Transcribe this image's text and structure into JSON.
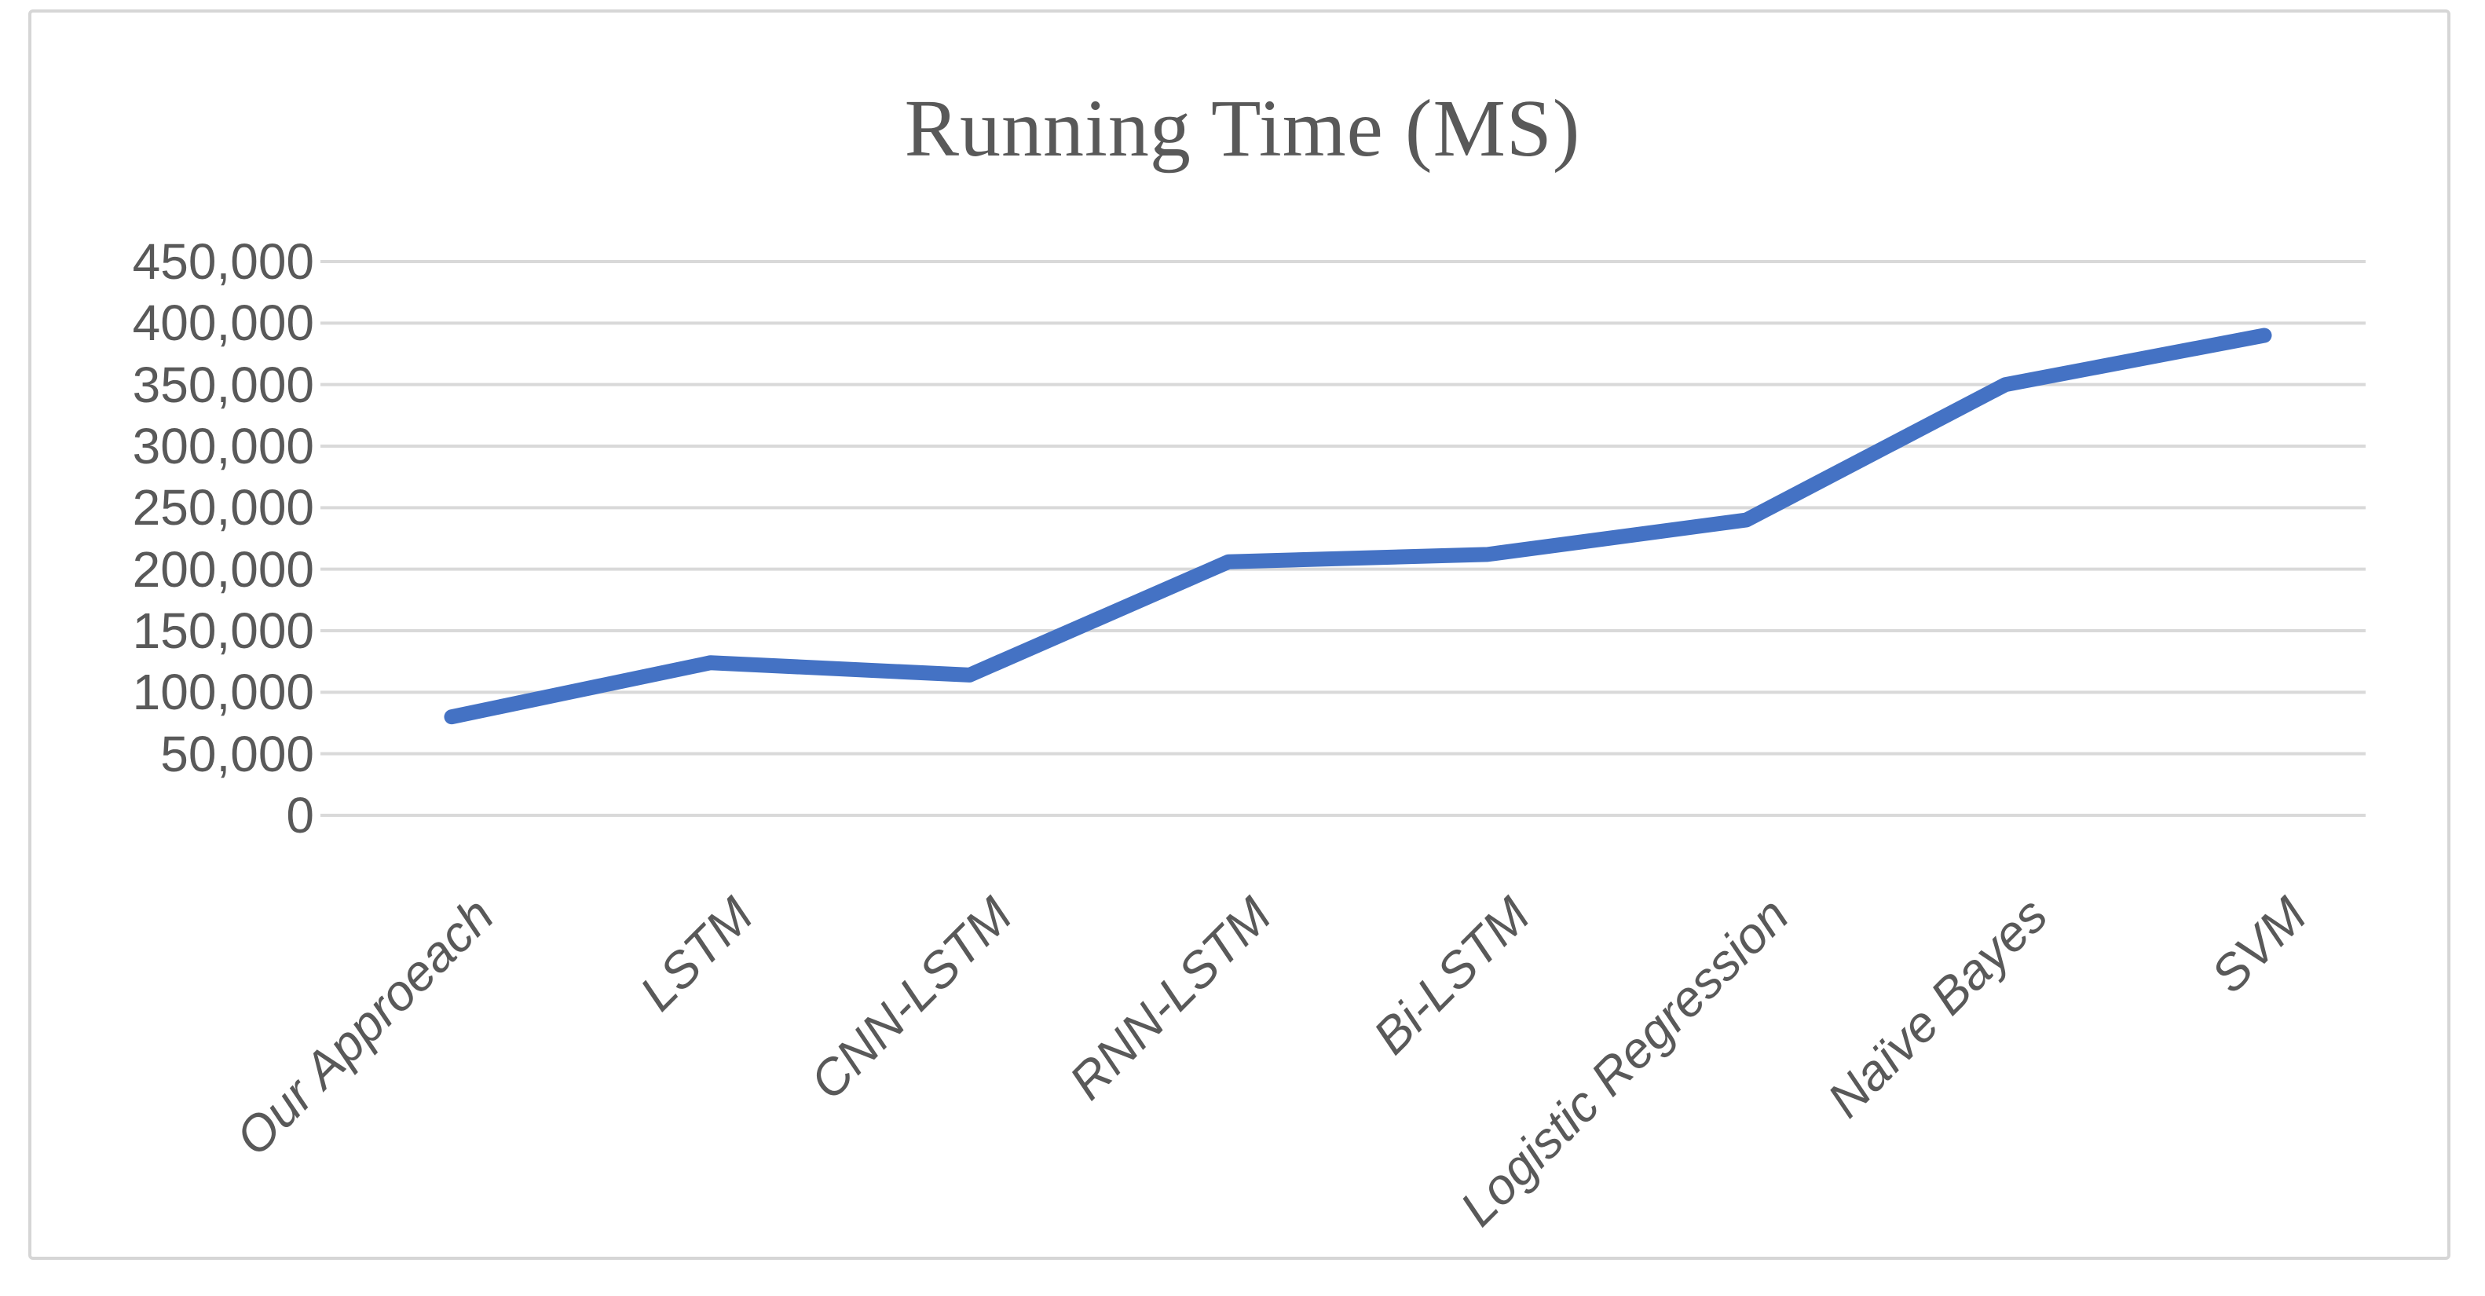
{
  "figure": {
    "title": "Running Time (MS)"
  },
  "chart_data": {
    "type": "line",
    "title": "Running Time (MS)",
    "xlabel": "",
    "ylabel": "",
    "categories": [
      "Our Approeach",
      "LSTM",
      "CNN-LSTM",
      "RNN-LSTM",
      "Bi-LSTM",
      "Logistic Regression",
      "Naïve Bayes",
      "SVM"
    ],
    "series": [
      {
        "name": "Running Time (MS)",
        "values": [
          80000,
          124000,
          114000,
          206000,
          212000,
          240000,
          350000,
          390000
        ]
      }
    ],
    "ylim": [
      0,
      450000
    ],
    "ytick_interval": 50000,
    "ytick_labels": [
      "0",
      "50,000",
      "100,000",
      "150,000",
      "200,000",
      "250,000",
      "300,000",
      "350,000",
      "400,000",
      "450,000"
    ],
    "grid": true,
    "legend_position": "none",
    "colors": {
      "line": "#4472C4",
      "gridline": "#d9d9d9",
      "text": "#595959",
      "border": "#d6d6d6",
      "background": "#ffffff"
    }
  }
}
